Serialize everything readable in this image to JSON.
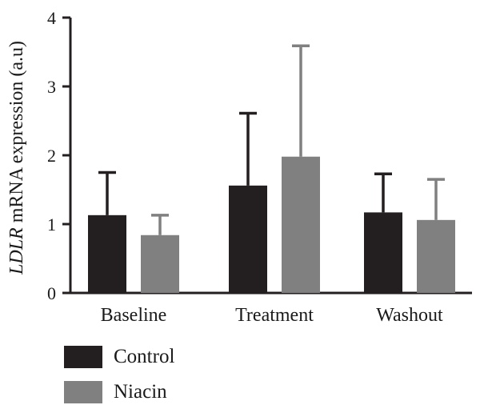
{
  "chart_data": {
    "type": "bar",
    "categories": [
      "Baseline",
      "Treatment",
      "Washout"
    ],
    "series": [
      {
        "name": "Control",
        "color": "#231f20",
        "values": [
          1.13,
          1.56,
          1.17
        ],
        "errors": [
          0.62,
          1.05,
          0.56
        ]
      },
      {
        "name": "Niacin",
        "color": "#808080",
        "values": [
          0.84,
          1.98,
          1.06
        ],
        "errors": [
          0.29,
          1.61,
          0.59
        ]
      }
    ],
    "ylabel_italic": "LDLR",
    "ylabel_rest": " mRNA expression (a.u)",
    "ylim": [
      0,
      4
    ],
    "yticks": [
      "0",
      "1",
      "2",
      "3",
      "4"
    ],
    "legend_position": "bottom-left",
    "grid": false
  }
}
